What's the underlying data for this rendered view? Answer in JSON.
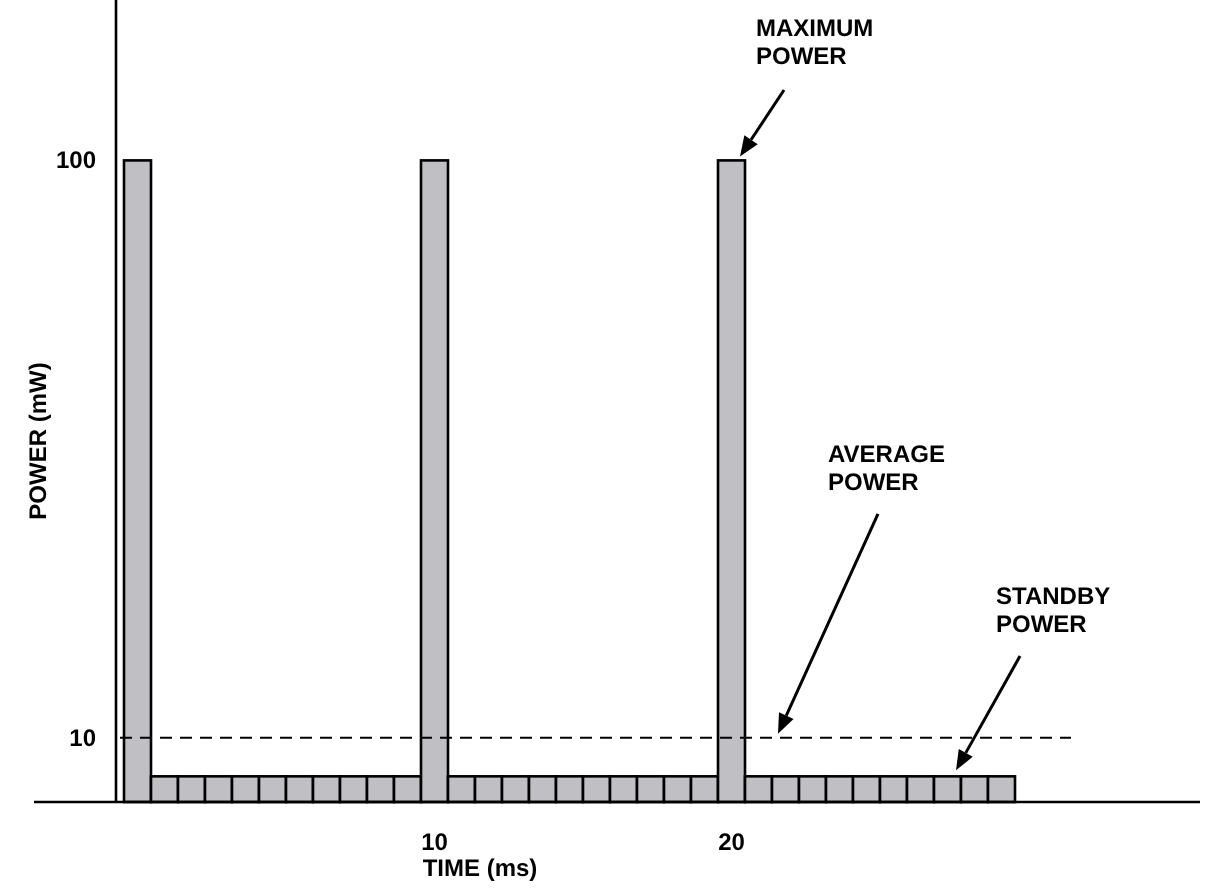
{
  "chart_data": {
    "type": "bar",
    "xlabel": "TIME (ms)",
    "ylabel": "POWER (mW)",
    "categories": [
      null,
      null,
      null,
      null,
      null,
      null,
      null,
      null,
      null,
      null,
      null,
      "10",
      null,
      null,
      null,
      null,
      null,
      null,
      null,
      null,
      null,
      null,
      "20",
      null,
      null,
      null,
      null,
      null,
      null,
      null,
      null,
      null,
      null
    ],
    "values": [
      100,
      4,
      4,
      4,
      4,
      4,
      4,
      4,
      4,
      4,
      4,
      100,
      4,
      4,
      4,
      4,
      4,
      4,
      4,
      4,
      4,
      4,
      100,
      4,
      4,
      4,
      4,
      4,
      4,
      4,
      4,
      4,
      4
    ],
    "color": "#bfbfc4",
    "ylim": [
      0,
      125
    ],
    "yticks": [
      10,
      100
    ],
    "ref_lines": [
      {
        "axis": "y",
        "value": 10,
        "label": "AVERAGE POWER",
        "line_style": "dashed",
        "color": "#000000"
      }
    ],
    "annotations": [
      "MAXIMUM POWER",
      "STANDBY POWER"
    ]
  }
}
